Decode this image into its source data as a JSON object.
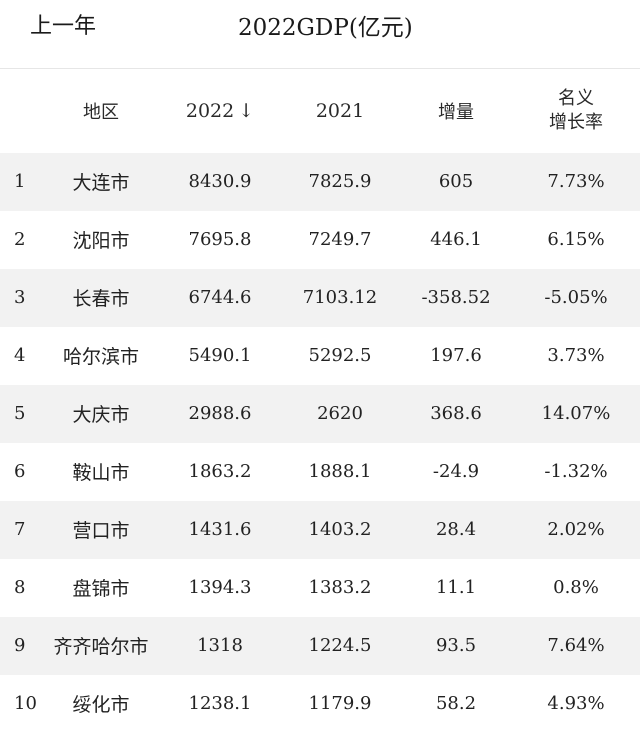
{
  "header": {
    "year_label": "上一年",
    "title": "2022GDP(亿元)"
  },
  "columns": {
    "region": "地区",
    "y2022": "2022",
    "sort_arrow": "↓",
    "y2021": "2021",
    "increase": "增量",
    "rate_line1": "名义",
    "rate_line2": "增长率"
  },
  "rows": [
    {
      "rank": "1",
      "city": "大连市",
      "gdp2022": "8430.9",
      "gdp2021": "7825.9",
      "increase": "605",
      "rate": "7.73%"
    },
    {
      "rank": "2",
      "city": "沈阳市",
      "gdp2022": "7695.8",
      "gdp2021": "7249.7",
      "increase": "446.1",
      "rate": "6.15%"
    },
    {
      "rank": "3",
      "city": "长春市",
      "gdp2022": "6744.6",
      "gdp2021": "7103.12",
      "increase": "-358.52",
      "rate": "-5.05%"
    },
    {
      "rank": "4",
      "city": "哈尔滨市",
      "gdp2022": "5490.1",
      "gdp2021": "5292.5",
      "increase": "197.6",
      "rate": "3.73%"
    },
    {
      "rank": "5",
      "city": "大庆市",
      "gdp2022": "2988.6",
      "gdp2021": "2620",
      "increase": "368.6",
      "rate": "14.07%"
    },
    {
      "rank": "6",
      "city": "鞍山市",
      "gdp2022": "1863.2",
      "gdp2021": "1888.1",
      "increase": "-24.9",
      "rate": "-1.32%"
    },
    {
      "rank": "7",
      "city": "营口市",
      "gdp2022": "1431.6",
      "gdp2021": "1403.2",
      "increase": "28.4",
      "rate": "2.02%"
    },
    {
      "rank": "8",
      "city": "盘锦市",
      "gdp2022": "1394.3",
      "gdp2021": "1383.2",
      "increase": "11.1",
      "rate": "0.8%"
    },
    {
      "rank": "9",
      "city": "齐齐哈尔市",
      "gdp2022": "1318",
      "gdp2021": "1224.5",
      "increase": "93.5",
      "rate": "7.64%"
    },
    {
      "rank": "10",
      "city": "绥化市",
      "gdp2022": "1238.1",
      "gdp2021": "1179.9",
      "increase": "58.2",
      "rate": "4.93%"
    }
  ]
}
